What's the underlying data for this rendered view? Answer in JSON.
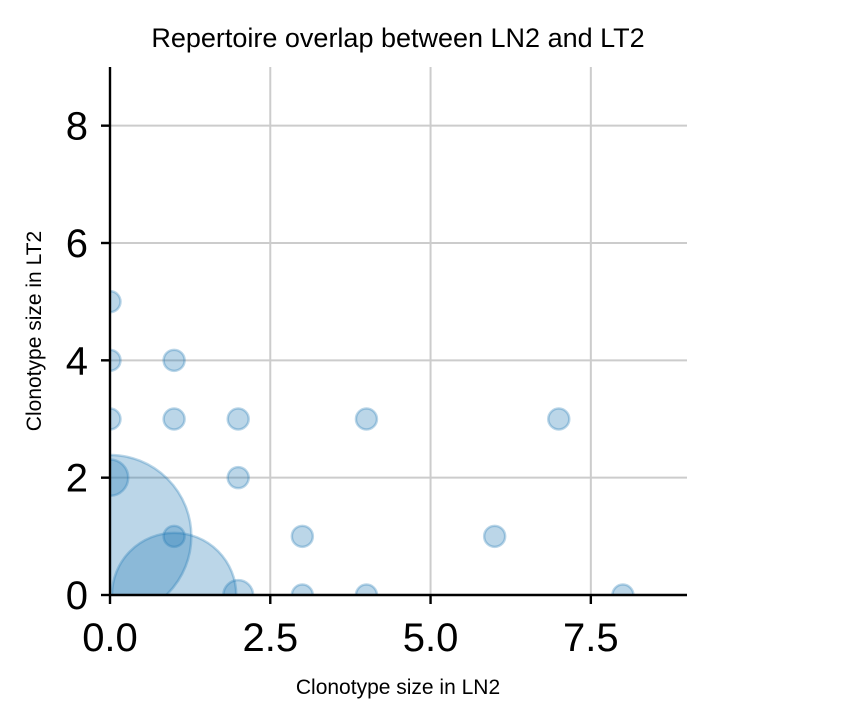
{
  "chart_data": {
    "type": "scatter",
    "title": "Repertoire overlap between LN2 and LT2",
    "xlabel": "Clonotype size in LN2",
    "ylabel": "Clonotype size in LT2",
    "xlim": [
      0,
      9
    ],
    "ylim": [
      0,
      9
    ],
    "xticks": [
      0,
      2.5,
      5,
      7.5
    ],
    "xtick_labels": [
      "0.0",
      "2.5",
      "5.0",
      "7.5"
    ],
    "yticks": [
      0,
      2,
      4,
      6,
      8
    ],
    "ytick_labels": [
      "0",
      "2",
      "4",
      "6",
      "8"
    ],
    "grid": true,
    "color": "#1f77b4",
    "alpha": 0.3,
    "points": [
      {
        "x": 0,
        "y": 1,
        "count": 60
      },
      {
        "x": 1,
        "y": 0,
        "count": 35
      },
      {
        "x": 0,
        "y": 2,
        "count": 3
      },
      {
        "x": 2,
        "y": 0,
        "count": 2
      },
      {
        "x": 0,
        "y": 3,
        "count": 1
      },
      {
        "x": 0,
        "y": 4,
        "count": 1
      },
      {
        "x": 0,
        "y": 5,
        "count": 1
      },
      {
        "x": 1,
        "y": 1,
        "count": 1
      },
      {
        "x": 1,
        "y": 3,
        "count": 1
      },
      {
        "x": 1,
        "y": 4,
        "count": 1
      },
      {
        "x": 2,
        "y": 2,
        "count": 1
      },
      {
        "x": 2,
        "y": 3,
        "count": 1
      },
      {
        "x": 3,
        "y": 0,
        "count": 1
      },
      {
        "x": 3,
        "y": 1,
        "count": 1
      },
      {
        "x": 4,
        "y": 0,
        "count": 1
      },
      {
        "x": 4,
        "y": 3,
        "count": 1
      },
      {
        "x": 6,
        "y": 1,
        "count": 1
      },
      {
        "x": 7,
        "y": 3,
        "count": 1
      },
      {
        "x": 8,
        "y": 0,
        "count": 1
      }
    ]
  }
}
